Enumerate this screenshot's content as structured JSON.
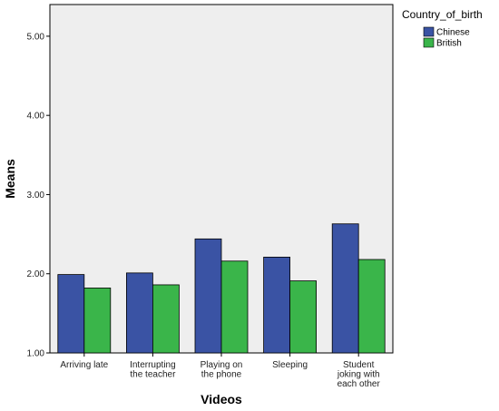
{
  "chart_data": {
    "type": "bar",
    "xlabel": "Videos",
    "ylabel": "Means",
    "categories": [
      [
        "Arriving late"
      ],
      [
        "Interrupting",
        "the teacher"
      ],
      [
        "Playing on",
        "the phone"
      ],
      [
        "Sleeping"
      ],
      [
        "Student",
        "joking with",
        "each other"
      ]
    ],
    "series": [
      {
        "name": "Chinese",
        "color": "#3a53a4",
        "values": [
          1.99,
          2.01,
          2.44,
          2.21,
          2.63
        ]
      },
      {
        "name": "British",
        "color": "#3ab54a",
        "values": [
          1.82,
          1.86,
          2.16,
          1.91,
          2.18
        ]
      }
    ],
    "ylim": [
      1.0,
      5.4
    ],
    "yticks": [
      "1.00",
      "2.00",
      "3.00",
      "4.00",
      "5.00"
    ],
    "legend": {
      "title": "Country_of_birth",
      "position": "top-right"
    },
    "plot_background": "#eeeeee",
    "grid": false
  }
}
